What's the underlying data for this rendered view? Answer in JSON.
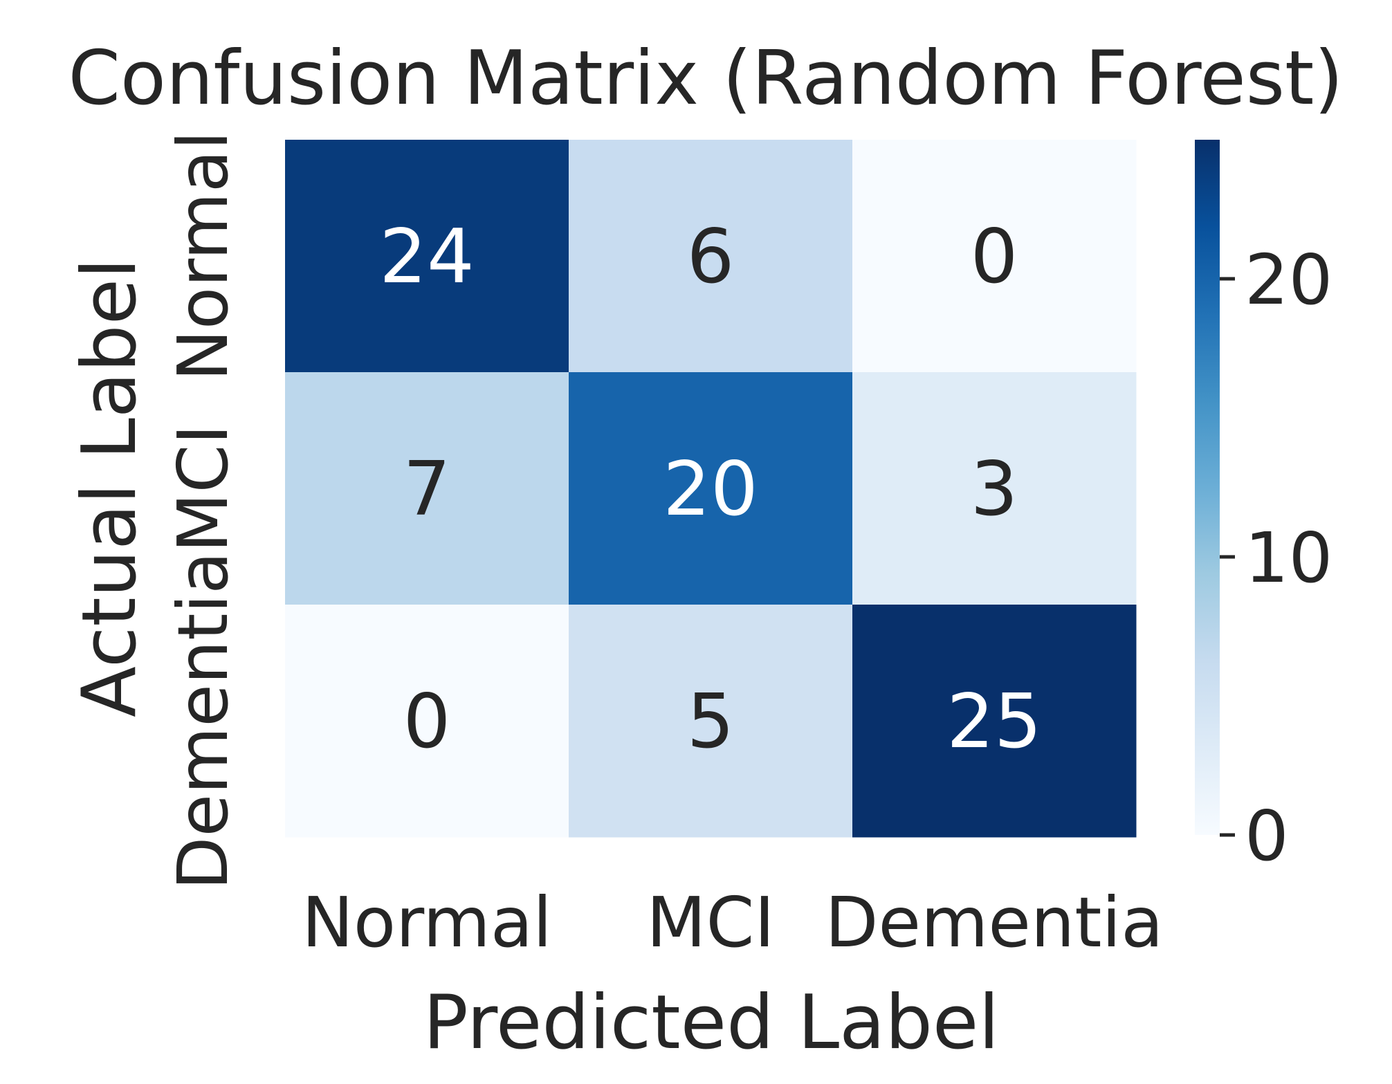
{
  "chart_data": {
    "type": "heatmap",
    "title": "Confusion Matrix (Random Forest)",
    "xlabel": "Predicted Label",
    "ylabel": "Actual Label",
    "x_categories": [
      "Normal",
      "MCI",
      "Dementia"
    ],
    "y_categories": [
      "Normal",
      "MCI",
      "Dementia"
    ],
    "values": [
      [
        24,
        6,
        0
      ],
      [
        7,
        20,
        3
      ],
      [
        0,
        5,
        25
      ]
    ],
    "colormap": "Blues",
    "color_low": "#f7fbff",
    "color_high": "#08306b",
    "colorbar": {
      "range": [
        0,
        25
      ],
      "ticks": [
        0,
        10,
        20
      ],
      "tick_labels": [
        "0",
        "10",
        "20"
      ]
    }
  }
}
